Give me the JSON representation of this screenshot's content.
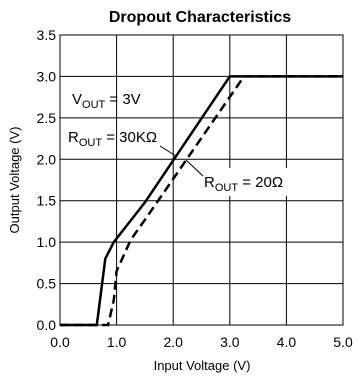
{
  "chart_data": {
    "type": "line",
    "title": "Dropout Characteristics",
    "xlabel": "Input Voltage (V)",
    "ylabel": "Output Voltage (V)",
    "xlim": [
      0.0,
      5.0
    ],
    "ylim": [
      0.0,
      3.5
    ],
    "x_ticks": [
      "0.0",
      "1.0",
      "2.0",
      "3.0",
      "4.0",
      "5.0"
    ],
    "y_ticks": [
      "0.0",
      "0.5",
      "1.0",
      "1.5",
      "2.0",
      "2.5",
      "3.0",
      "3.5"
    ],
    "grid": true,
    "series": [
      {
        "style": "solid",
        "x": [
          0.0,
          0.65,
          0.8,
          0.95,
          1.5,
          3.0,
          5.0
        ],
        "y": [
          0.0,
          0.0,
          0.8,
          1.0,
          1.48,
          3.0,
          3.0
        ]
      },
      {
        "style": "dashed",
        "x": [
          0.0,
          0.85,
          0.95,
          1.0,
          1.25,
          1.5,
          3.25,
          5.0
        ],
        "y": [
          0.0,
          0.0,
          0.3,
          0.65,
          1.03,
          1.27,
          3.0,
          3.0
        ]
      }
    ],
    "annotations": [
      {
        "main": "V",
        "sub": "OUT",
        "rest": " = 3V"
      },
      {
        "main": "R",
        "sub": "OUT",
        "rest": " = 30KΩ"
      },
      {
        "main": "R",
        "sub": "OUT",
        "rest": " = 20Ω"
      }
    ]
  }
}
